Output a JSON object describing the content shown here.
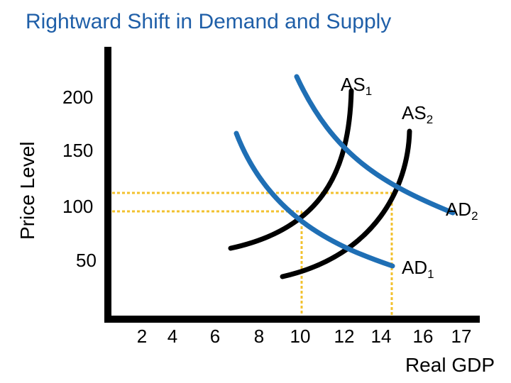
{
  "chart_data": {
    "type": "line",
    "title": "Rightward Shift in Demand and Supply",
    "xlabel": "Real GDP",
    "ylabel": "Price Level",
    "x_ticks": [
      "2",
      "4",
      "6",
      "8",
      "10",
      "12",
      "14",
      "16",
      "17"
    ],
    "y_ticks": [
      "200",
      "150",
      "100",
      "50"
    ],
    "curves": [
      {
        "label_main": "AS",
        "label_sub": "1",
        "color": "#000000",
        "kind": "supply"
      },
      {
        "label_main": "AS",
        "label_sub": "2",
        "color": "#000000",
        "kind": "supply"
      },
      {
        "label_main": "AD",
        "label_sub": "1",
        "color": "#1f6fb5",
        "kind": "demand"
      },
      {
        "label_main": "AD",
        "label_sub": "2",
        "color": "#1f6fb5",
        "kind": "demand"
      }
    ],
    "equilibria": [
      {
        "name": "original",
        "x": 10,
        "y": 100
      },
      {
        "name": "new",
        "x": 14,
        "y": 110
      }
    ],
    "guide_color": "#f2c12e",
    "grid": false
  }
}
